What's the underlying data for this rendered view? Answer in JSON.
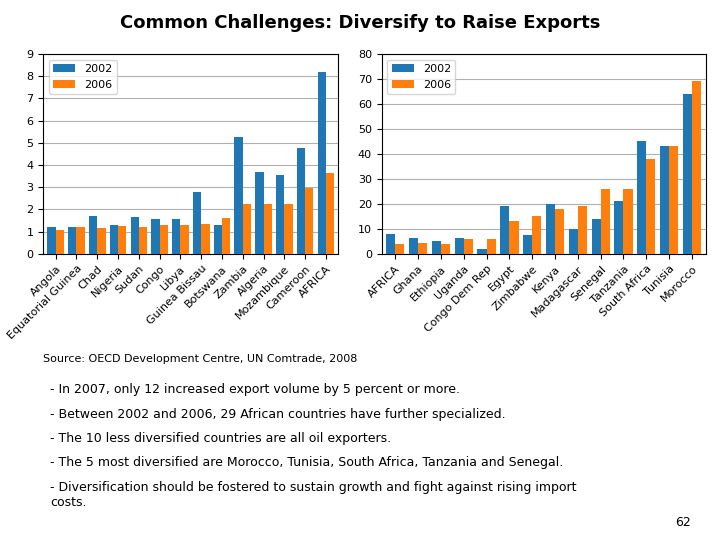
{
  "title": "Common Challenges: Diversify to Raise Exports",
  "annotations": [
    "Source: OECD Development Centre, UN Comtrade, 2008",
    "- In 2007, only 12 increased export volume by 5 percent or more.",
    "- Between 2002 and 2006, 29 African countries have further specialized.",
    "- The 10 less diversified countries are all oil exporters.",
    "- The 5 most diversified are Morocco, Tunisia, South Africa, Tanzania and Senegal.",
    "- Diversification should be fostered to sustain growth and fight against rising import\ncosts.",
    "62"
  ],
  "chart_data": [
    {
      "type": "bar",
      "categories": [
        "Angola",
        "Equatorial Guinea",
        "Chad",
        "Nigeria",
        "Sudan",
        "Congo",
        "Libya",
        "Guinea Bissau",
        "Botswana",
        "Zambia",
        "Algeria",
        "Mozambique",
        "Cameroon",
        "AFRICA"
      ],
      "series": [
        {
          "name": "2002",
          "values": [
            1.2,
            1.2,
            1.7,
            1.3,
            1.65,
            1.55,
            1.55,
            2.8,
            1.3,
            5.25,
            3.7,
            3.55,
            4.75,
            8.2
          ]
        },
        {
          "name": "2006",
          "values": [
            1.05,
            1.2,
            1.15,
            1.25,
            1.2,
            1.3,
            1.3,
            1.35,
            1.6,
            2.25,
            2.25,
            2.25,
            2.95,
            3.65
          ]
        }
      ],
      "ylim": [
        0,
        9
      ],
      "yticks": [
        0,
        1,
        2,
        3,
        4,
        5,
        6,
        7,
        8,
        9
      ],
      "grid": true,
      "legend": "upper left"
    },
    {
      "type": "bar",
      "categories": [
        "AFRICA",
        "Ghana",
        "Ethiopia",
        "Uganda",
        "Congo Dem Rep",
        "Egypt",
        "Zimbabwe",
        "Kenya",
        "Madagascar",
        "Senegal",
        "Tanzania",
        "South Africa",
        "Tunisia",
        "Morocco"
      ],
      "series": [
        {
          "name": "2002",
          "values": [
            8,
            6.5,
            5,
            6.5,
            2,
            19,
            7.5,
            20,
            10,
            14,
            21,
            45,
            43,
            64
          ]
        },
        {
          "name": "2006",
          "values": [
            4,
            4.5,
            4,
            6,
            6,
            13,
            15,
            18,
            19,
            26,
            26,
            38,
            43,
            69
          ]
        }
      ],
      "ylim": [
        0,
        80
      ],
      "yticks": [
        0,
        10,
        20,
        30,
        40,
        50,
        60,
        70,
        80
      ],
      "grid": true,
      "legend": "upper left"
    }
  ]
}
